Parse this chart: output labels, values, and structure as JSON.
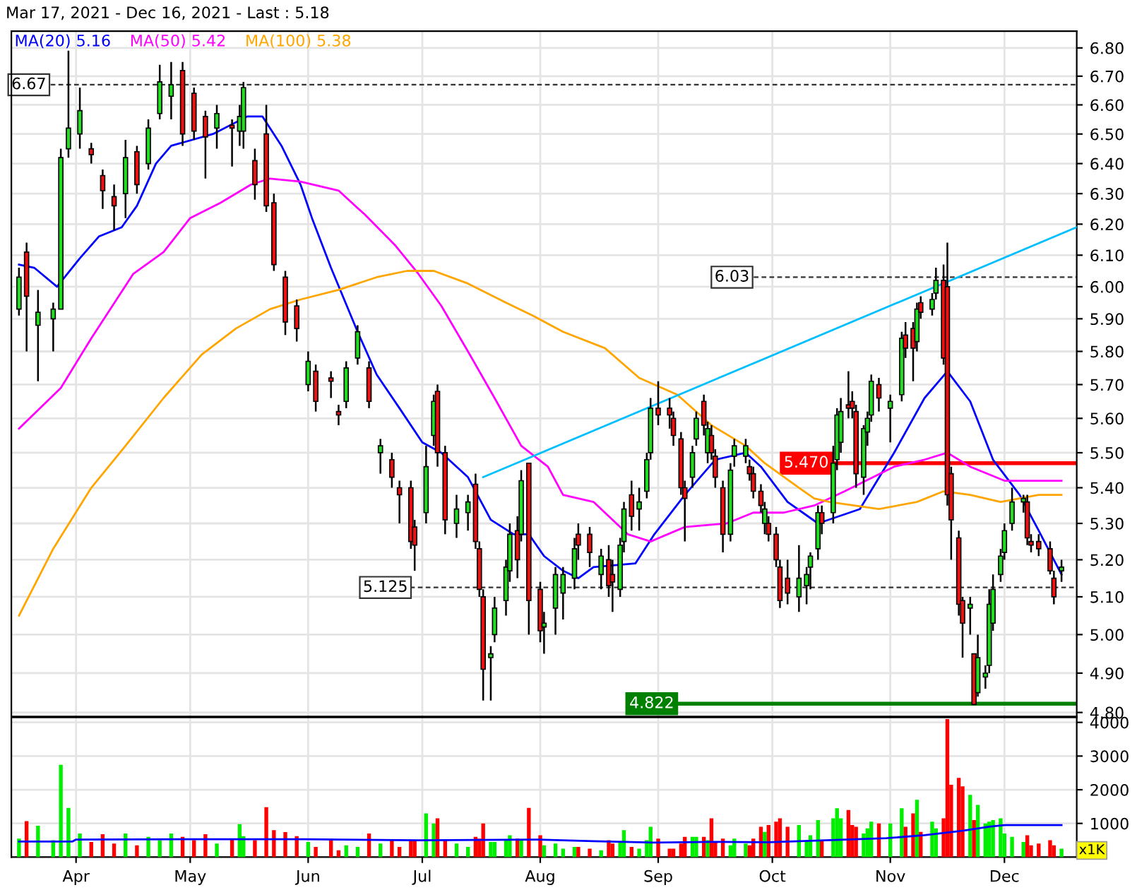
{
  "chart_data": [
    {
      "type": "candlestick",
      "title": "Mar 17, 2021 - Dec 16, 2021 - Last : 5.18",
      "log": "y",
      "grid": true,
      "legend": "top left",
      "tick_labels": "y",
      "x": [
        "2021-03-17",
        "2021-03-19",
        "2021-03-22",
        "2021-03-26",
        "2021-03-28",
        "2021-03-30",
        "2021-04-02",
        "2021-04-05",
        "2021-04-08",
        "2021-04-11",
        "2021-04-14",
        "2021-04-17",
        "2021-04-20",
        "2021-04-23",
        "2021-04-26",
        "2021-04-29",
        "2021-05-02",
        "2021-05-05",
        "2021-05-08",
        "2021-05-12",
        "2021-05-14",
        "2021-05-15",
        "2021-05-18",
        "2021-05-21",
        "2021-05-23",
        "2021-05-26",
        "2021-05-29",
        "2021-06-01",
        "2021-06-03",
        "2021-06-07",
        "2021-06-09",
        "2021-06-11",
        "2021-06-14",
        "2021-06-17",
        "2021-06-20",
        "2021-06-23",
        "2021-06-25",
        "2021-06-28",
        "2021-06-29",
        "2021-07-02",
        "2021-07-04",
        "2021-07-05",
        "2021-07-07",
        "2021-07-10",
        "2021-07-13",
        "2021-07-15",
        "2021-07-16",
        "2021-07-17",
        "2021-07-19",
        "2021-07-20",
        "2021-07-23",
        "2021-07-24",
        "2021-07-26",
        "2021-07-27",
        "2021-07-29",
        "2021-08-01",
        "2021-08-02",
        "2021-08-05",
        "2021-08-07",
        "2021-08-10",
        "2021-08-11",
        "2021-08-14",
        "2021-08-17",
        "2021-08-19",
        "2021-08-20",
        "2021-08-22",
        "2021-08-23",
        "2021-08-25",
        "2021-08-27",
        "2021-08-29",
        "2021-08-30",
        "2021-09-01",
        "2021-09-04",
        "2021-09-05",
        "2021-09-07",
        "2021-09-08",
        "2021-09-10",
        "2021-09-11",
        "2021-09-13",
        "2021-09-14",
        "2021-09-15",
        "2021-09-16",
        "2021-09-18",
        "2021-09-20",
        "2021-09-21",
        "2021-09-24",
        "2021-09-25",
        "2021-09-26",
        "2021-09-28",
        "2021-09-29",
        "2021-09-30",
        "2021-10-02",
        "2021-10-03",
        "2021-10-05",
        "2021-10-08",
        "2021-10-10",
        "2021-10-11",
        "2021-10-13",
        "2021-10-14",
        "2021-10-17",
        "2021-10-18",
        "2021-10-19",
        "2021-10-21",
        "2021-10-22",
        "2021-10-23",
        "2021-10-25",
        "2021-10-26",
        "2021-10-27",
        "2021-10-29",
        "2021-11-01",
        "2021-11-04",
        "2021-11-05",
        "2021-11-07",
        "2021-11-08",
        "2021-11-09",
        "2021-11-12",
        "2021-11-13",
        "2021-11-15",
        "2021-11-16",
        "2021-11-17",
        "2021-11-19",
        "2021-11-20",
        "2021-11-22",
        "2021-11-23",
        "2021-11-24",
        "2021-11-26",
        "2021-11-27",
        "2021-11-28",
        "2021-11-30",
        "2021-12-01",
        "2021-12-03",
        "2021-12-06",
        "2021-12-07",
        "2021-12-08",
        "2021-12-10",
        "2021-12-13",
        "2021-12-14",
        "2021-12-16"
      ],
      "ohlc": [
        [
          5.93,
          6.06,
          5.91,
          6.03
        ],
        [
          6.11,
          6.14,
          5.8,
          5.97
        ],
        [
          5.88,
          5.99,
          5.71,
          5.92
        ],
        [
          5.9,
          5.95,
          5.8,
          5.93
        ],
        [
          5.93,
          6.45,
          5.93,
          6.42
        ],
        [
          6.45,
          6.79,
          6.42,
          6.52
        ],
        [
          6.5,
          6.66,
          6.45,
          6.58
        ],
        [
          6.45,
          6.47,
          6.4,
          6.43
        ],
        [
          6.36,
          6.38,
          6.25,
          6.31
        ],
        [
          6.29,
          6.33,
          6.18,
          6.26
        ],
        [
          6.3,
          6.48,
          6.22,
          6.42
        ],
        [
          6.44,
          6.46,
          6.3,
          6.33
        ],
        [
          6.4,
          6.55,
          6.38,
          6.52
        ],
        [
          6.57,
          6.74,
          6.55,
          6.68
        ],
        [
          6.63,
          6.75,
          6.55,
          6.67
        ],
        [
          6.72,
          6.75,
          6.46,
          6.5
        ],
        [
          6.64,
          6.66,
          6.48,
          6.51
        ],
        [
          6.56,
          6.58,
          6.35,
          6.49
        ],
        [
          6.52,
          6.6,
          6.45,
          6.57
        ],
        [
          6.53,
          6.55,
          6.39,
          6.52
        ],
        [
          6.51,
          6.6,
          6.46,
          6.56
        ],
        [
          6.51,
          6.68,
          6.45,
          6.66
        ],
        [
          6.41,
          6.45,
          6.28,
          6.33
        ],
        [
          6.5,
          6.6,
          6.24,
          6.26
        ],
        [
          6.27,
          6.3,
          6.05,
          6.07
        ],
        [
          6.03,
          6.05,
          5.85,
          5.89
        ],
        [
          5.94,
          5.96,
          5.83,
          5.87
        ],
        [
          5.7,
          5.8,
          5.68,
          5.77
        ],
        [
          5.74,
          5.76,
          5.62,
          5.65
        ],
        [
          5.72,
          5.74,
          5.66,
          5.71
        ],
        [
          5.62,
          5.64,
          5.58,
          5.61
        ],
        [
          5.65,
          5.77,
          5.63,
          5.75
        ],
        [
          5.78,
          5.88,
          5.76,
          5.86
        ],
        [
          5.75,
          5.77,
          5.63,
          5.65
        ],
        [
          5.5,
          5.54,
          5.44,
          5.52
        ],
        [
          5.48,
          5.5,
          5.4,
          5.43
        ],
        [
          5.4,
          5.42,
          5.3,
          5.38
        ],
        [
          5.4,
          5.42,
          5.23,
          5.25
        ],
        [
          5.29,
          5.31,
          5.17,
          5.24
        ],
        [
          5.33,
          5.52,
          5.3,
          5.46
        ],
        [
          5.55,
          5.67,
          5.52,
          5.65
        ],
        [
          5.68,
          5.7,
          5.46,
          5.5
        ],
        [
          5.5,
          5.52,
          5.27,
          5.31
        ],
        [
          5.3,
          5.38,
          5.26,
          5.34
        ],
        [
          5.33,
          5.38,
          5.28,
          5.36
        ],
        [
          5.41,
          5.44,
          5.23,
          5.25
        ],
        [
          5.23,
          5.25,
          5.1,
          5.12
        ],
        [
          5.1,
          5.12,
          4.83,
          4.91
        ],
        [
          4.94,
          4.97,
          4.83,
          4.95
        ],
        [
          5.0,
          5.1,
          4.98,
          5.07
        ],
        [
          5.09,
          5.2,
          5.05,
          5.18
        ],
        [
          5.17,
          5.3,
          5.14,
          5.27
        ],
        [
          5.28,
          5.32,
          5.15,
          5.2
        ],
        [
          5.27,
          5.45,
          5.25,
          5.42
        ],
        [
          5.47,
          5.47,
          5.0,
          5.09
        ],
        [
          5.12,
          5.14,
          4.98,
          5.01
        ],
        [
          5.02,
          5.06,
          4.95,
          5.03
        ],
        [
          5.07,
          5.18,
          5.0,
          5.16
        ],
        [
          5.11,
          5.18,
          5.04,
          5.16
        ],
        [
          5.15,
          5.26,
          5.12,
          5.23
        ],
        [
          5.27,
          5.3,
          5.2,
          5.24
        ],
        [
          5.27,
          5.29,
          5.18,
          5.22
        ],
        [
          5.16,
          5.23,
          5.12,
          5.21
        ],
        [
          5.2,
          5.24,
          5.1,
          5.13
        ],
        [
          5.16,
          5.2,
          5.06,
          5.14
        ],
        [
          5.12,
          5.26,
          5.1,
          5.24
        ],
        [
          5.25,
          5.36,
          5.22,
          5.34
        ],
        [
          5.38,
          5.42,
          5.28,
          5.32
        ],
        [
          5.34,
          5.4,
          5.28,
          5.36
        ],
        [
          5.39,
          5.5,
          5.37,
          5.48
        ],
        [
          5.5,
          5.66,
          5.48,
          5.63
        ],
        [
          5.63,
          5.71,
          5.58,
          5.61
        ],
        [
          5.63,
          5.66,
          5.57,
          5.61
        ],
        [
          5.6,
          5.62,
          5.52,
          5.55
        ],
        [
          5.54,
          5.56,
          5.38,
          5.4
        ],
        [
          5.4,
          5.42,
          5.25,
          5.37
        ],
        [
          5.43,
          5.52,
          5.4,
          5.5
        ],
        [
          5.54,
          5.62,
          5.52,
          5.6
        ],
        [
          5.65,
          5.67,
          5.55,
          5.58
        ],
        [
          5.5,
          5.59,
          5.47,
          5.57
        ],
        [
          5.55,
          5.58,
          5.48,
          5.5
        ],
        [
          5.49,
          5.51,
          5.4,
          5.43
        ],
        [
          5.4,
          5.42,
          5.22,
          5.27
        ],
        [
          5.27,
          5.47,
          5.25,
          5.45
        ],
        [
          5.49,
          5.54,
          5.46,
          5.52
        ],
        [
          5.49,
          5.54,
          5.47,
          5.52
        ],
        [
          5.46,
          5.48,
          5.42,
          5.44
        ],
        [
          5.44,
          5.46,
          5.37,
          5.39
        ],
        [
          5.39,
          5.41,
          5.33,
          5.35
        ],
        [
          5.3,
          5.36,
          5.27,
          5.34
        ],
        [
          5.3,
          5.32,
          5.25,
          5.27
        ],
        [
          5.27,
          5.29,
          5.18,
          5.2
        ],
        [
          5.18,
          5.2,
          5.07,
          5.09
        ],
        [
          5.15,
          5.2,
          5.08,
          5.11
        ],
        [
          5.1,
          5.24,
          5.06,
          5.15
        ],
        [
          5.13,
          5.18,
          5.08,
          5.16
        ],
        [
          5.18,
          5.22,
          5.12,
          5.21
        ],
        [
          5.23,
          5.35,
          5.2,
          5.33
        ],
        [
          5.33,
          5.35,
          5.27,
          5.3
        ],
        [
          5.33,
          5.52,
          5.3,
          5.47
        ],
        [
          5.48,
          5.63,
          5.45,
          5.61
        ],
        [
          5.53,
          5.66,
          5.5,
          5.62
        ],
        [
          5.64,
          5.74,
          5.6,
          5.63
        ],
        [
          5.65,
          5.68,
          5.6,
          5.63
        ],
        [
          5.62,
          5.64,
          5.4,
          5.44
        ],
        [
          5.43,
          5.58,
          5.38,
          5.57
        ],
        [
          5.56,
          5.62,
          5.52,
          5.6
        ],
        [
          5.61,
          5.73,
          5.59,
          5.71
        ],
        [
          5.7,
          5.72,
          5.62,
          5.66
        ],
        [
          5.63,
          5.67,
          5.53,
          5.65
        ],
        [
          5.67,
          5.86,
          5.65,
          5.84
        ],
        [
          5.85,
          5.89,
          5.78,
          5.81
        ],
        [
          5.87,
          5.89,
          5.71,
          5.81
        ],
        [
          5.83,
          5.95,
          5.8,
          5.93
        ],
        [
          5.95,
          5.97,
          5.9,
          5.92
        ],
        [
          5.93,
          5.98,
          5.91,
          5.96
        ],
        [
          5.98,
          6.06,
          5.96,
          6.02
        ],
        [
          6.02,
          6.07,
          5.76,
          5.78
        ],
        [
          6.0,
          6.14,
          5.35,
          5.38
        ],
        [
          5.44,
          5.46,
          5.2,
          5.31
        ],
        [
          5.26,
          5.28,
          5.05,
          5.08
        ],
        [
          5.09,
          5.1,
          4.94,
          5.03
        ],
        [
          5.07,
          5.1,
          5.0,
          5.08
        ],
        [
          4.95,
          4.95,
          4.82,
          4.82
        ],
        [
          4.85,
          5.0,
          4.84,
          4.94
        ],
        [
          4.89,
          4.92,
          4.86,
          4.9
        ],
        [
          4.92,
          5.12,
          4.9,
          5.08
        ],
        [
          5.03,
          5.16,
          5.01,
          5.12
        ],
        [
          5.16,
          5.23,
          5.14,
          5.21
        ],
        [
          5.22,
          5.3,
          5.2,
          5.28
        ],
        [
          5.3,
          5.4,
          5.28,
          5.36
        ],
        [
          5.36,
          5.38,
          5.33,
          5.37
        ],
        [
          5.36,
          5.38,
          5.24,
          5.26
        ],
        [
          5.25,
          5.27,
          5.22,
          5.24
        ],
        [
          5.25,
          5.27,
          5.21,
          5.23
        ],
        [
          5.23,
          5.25,
          5.16,
          5.17
        ],
        [
          5.15,
          5.17,
          5.08,
          5.1
        ],
        [
          5.17,
          5.2,
          5.14,
          5.18
        ]
      ],
      "series": [
        {
          "name": "MA(20) 5.16",
          "type": "line",
          "color": "#0000ff",
          "x": [
            "2021-03-17",
            "2021-03-21",
            "2021-03-27",
            "2021-04-02",
            "2021-04-07",
            "2021-04-13",
            "2021-04-17",
            "2021-04-22",
            "2021-04-26",
            "2021-05-07",
            "2021-05-16",
            "2021-05-20",
            "2021-05-25",
            "2021-05-30",
            "2021-06-02",
            "2021-06-07",
            "2021-06-14",
            "2021-06-19",
            "2021-06-25",
            "2021-07-01",
            "2021-07-06",
            "2021-07-13",
            "2021-07-19",
            "2021-07-25",
            "2021-07-29",
            "2021-08-02",
            "2021-08-07",
            "2021-08-11",
            "2021-08-15",
            "2021-08-26",
            "2021-08-31",
            "2021-09-08",
            "2021-09-16",
            "2021-09-24",
            "2021-09-28",
            "2021-10-05",
            "2021-10-09",
            "2021-10-13",
            "2021-10-24",
            "2021-11-02",
            "2021-11-10",
            "2021-11-16",
            "2021-11-22",
            "2021-11-28",
            "2021-12-05",
            "2021-12-10",
            "2021-12-16"
          ],
          "values": [
            6.07,
            6.06,
            6.0,
            6.09,
            6.16,
            6.19,
            6.26,
            6.4,
            6.46,
            6.5,
            6.56,
            6.56,
            6.46,
            6.33,
            6.22,
            6.06,
            5.86,
            5.73,
            5.63,
            5.53,
            5.5,
            5.43,
            5.31,
            5.27,
            5.27,
            5.21,
            5.17,
            5.15,
            5.18,
            5.19,
            5.27,
            5.38,
            5.48,
            5.5,
            5.46,
            5.36,
            5.33,
            5.3,
            5.34,
            5.5,
            5.66,
            5.74,
            5.65,
            5.48,
            5.38,
            5.28,
            5.16
          ]
        },
        {
          "name": "MA(50) 5.42",
          "type": "line",
          "color": "#ff00ff",
          "x": [
            "2021-03-17",
            "2021-03-28",
            "2021-04-05",
            "2021-04-16",
            "2021-04-24",
            "2021-05-01",
            "2021-05-09",
            "2021-05-17",
            "2021-05-22",
            "2021-05-30",
            "2021-06-09",
            "2021-06-16",
            "2021-06-24",
            "2021-06-30",
            "2021-07-06",
            "2021-07-13",
            "2021-07-20",
            "2021-07-27",
            "2021-08-03",
            "2021-08-07",
            "2021-08-15",
            "2021-08-24",
            "2021-08-30",
            "2021-09-08",
            "2021-09-19",
            "2021-09-26",
            "2021-10-04",
            "2021-10-12",
            "2021-10-20",
            "2021-11-02",
            "2021-11-10",
            "2021-11-16",
            "2021-11-22",
            "2021-12-01",
            "2021-12-10",
            "2021-12-16"
          ],
          "values": [
            5.57,
            5.69,
            5.84,
            6.04,
            6.11,
            6.22,
            6.27,
            6.33,
            6.35,
            6.34,
            6.31,
            6.23,
            6.13,
            6.04,
            5.94,
            5.8,
            5.66,
            5.52,
            5.46,
            5.38,
            5.36,
            5.27,
            5.25,
            5.29,
            5.3,
            5.33,
            5.33,
            5.35,
            5.39,
            5.46,
            5.48,
            5.5,
            5.46,
            5.42,
            5.42,
            5.42
          ]
        },
        {
          "name": "MA(100) 5.38",
          "type": "line",
          "color": "#ffa500",
          "x": [
            "2021-03-17",
            "2021-03-26",
            "2021-04-05",
            "2021-04-14",
            "2021-04-24",
            "2021-05-04",
            "2021-05-13",
            "2021-05-22",
            "2021-05-30",
            "2021-06-09",
            "2021-06-19",
            "2021-06-27",
            "2021-07-04",
            "2021-07-13",
            "2021-07-23",
            "2021-07-30",
            "2021-08-07",
            "2021-08-18",
            "2021-08-27",
            "2021-09-06",
            "2021-09-15",
            "2021-09-24",
            "2021-09-29",
            "2021-10-08",
            "2021-10-12",
            "2021-10-16",
            "2021-10-29",
            "2021-11-08",
            "2021-11-15",
            "2021-11-22",
            "2021-11-30",
            "2021-12-10",
            "2021-12-16"
          ],
          "values": [
            5.05,
            5.23,
            5.4,
            5.52,
            5.66,
            5.79,
            5.87,
            5.93,
            5.96,
            5.99,
            6.03,
            6.05,
            6.05,
            6.01,
            5.95,
            5.91,
            5.86,
            5.81,
            5.72,
            5.67,
            5.58,
            5.52,
            5.47,
            5.4,
            5.37,
            5.36,
            5.34,
            5.36,
            5.39,
            5.38,
            5.36,
            5.38,
            5.38
          ]
        },
        {
          "type": "line",
          "color": "#00bfff",
          "x": [
            "2021-07-17",
            "2021-12-20"
          ],
          "values": [
            5.43,
            6.19
          ]
        }
      ],
      "ref_lines": [
        {
          "axis": "y",
          "value": 6.67,
          "label": "6.67",
          "color": "#333333",
          "line_style": "dashed"
        },
        {
          "axis": "y",
          "value": 6.03,
          "label": "6.03",
          "color": "#333333",
          "line_style": "dashed"
        },
        {
          "axis": "y",
          "value": 5.125,
          "label": "5.125",
          "color": "#333333",
          "line_style": "dashed"
        },
        {
          "axis": "y",
          "value": 5.47,
          "label": "5.470",
          "color": "#ff0000",
          "line_style": "solid"
        },
        {
          "axis": "y",
          "value": 4.822,
          "label": "4.822",
          "color": "#008000",
          "line_style": "solid"
        }
      ],
      "xlim": [
        "2021-03-15",
        "2021-12-20"
      ],
      "xticks": [
        {
          "value": "2021-04-01",
          "label": null
        },
        {
          "value": "2021-05-01",
          "label": null
        },
        {
          "value": "2021-06-01",
          "label": null
        },
        {
          "value": "2021-07-01",
          "label": null
        },
        {
          "value": "2021-08-01",
          "label": null
        },
        {
          "value": "2021-09-01",
          "label": null
        },
        {
          "value": "2021-10-01",
          "label": null
        },
        {
          "value": "2021-11-01",
          "label": null
        },
        {
          "value": "2021-12-01",
          "label": null
        }
      ],
      "ylim": [
        4.79,
        6.86
      ],
      "yticks": [
        {
          "value": 4.8,
          "label": "4.80"
        },
        {
          "value": 4.9,
          "label": "4.90"
        },
        {
          "value": 5.0,
          "label": "5.00"
        },
        {
          "value": 5.1,
          "label": "5.10"
        },
        {
          "value": 5.2,
          "label": "5.20"
        },
        {
          "value": 5.3,
          "label": "5.30"
        },
        {
          "value": 5.4,
          "label": "5.40"
        },
        {
          "value": 5.5,
          "label": "5.50"
        },
        {
          "value": 5.6,
          "label": "5.60"
        },
        {
          "value": 5.7,
          "label": "5.70"
        },
        {
          "value": 5.8,
          "label": "5.80"
        },
        {
          "value": 5.9,
          "label": "5.90"
        },
        {
          "value": 6.0,
          "label": "6.00"
        },
        {
          "value": 6.1,
          "label": "6.10"
        },
        {
          "value": 6.2,
          "label": "6.20"
        },
        {
          "value": 6.3,
          "label": "6.30"
        },
        {
          "value": 6.4,
          "label": "6.40"
        },
        {
          "value": 6.5,
          "label": "6.50"
        },
        {
          "value": 6.6,
          "label": "6.60"
        },
        {
          "value": 6.7,
          "label": "6.70"
        },
        {
          "value": 6.8,
          "label": "6.80"
        }
      ]
    },
    {
      "type": "bar",
      "grid": true,
      "annotations": [
        "x1K"
      ],
      "x": [
        "2021-03-17",
        "2021-03-19",
        "2021-03-22",
        "2021-03-26",
        "2021-03-28",
        "2021-03-30",
        "2021-04-02",
        "2021-04-05",
        "2021-04-08",
        "2021-04-11",
        "2021-04-14",
        "2021-04-17",
        "2021-04-20",
        "2021-04-23",
        "2021-04-26",
        "2021-04-29",
        "2021-05-02",
        "2021-05-05",
        "2021-05-08",
        "2021-05-12",
        "2021-05-14",
        "2021-05-15",
        "2021-05-18",
        "2021-05-21",
        "2021-05-23",
        "2021-05-26",
        "2021-05-29",
        "2021-06-01",
        "2021-06-03",
        "2021-06-07",
        "2021-06-09",
        "2021-06-11",
        "2021-06-14",
        "2021-06-17",
        "2021-06-20",
        "2021-06-23",
        "2021-06-25",
        "2021-06-28",
        "2021-06-29",
        "2021-07-02",
        "2021-07-04",
        "2021-07-05",
        "2021-07-07",
        "2021-07-10",
        "2021-07-13",
        "2021-07-15",
        "2021-07-16",
        "2021-07-17",
        "2021-07-19",
        "2021-07-20",
        "2021-07-23",
        "2021-07-24",
        "2021-07-26",
        "2021-07-27",
        "2021-07-29",
        "2021-08-01",
        "2021-08-02",
        "2021-08-05",
        "2021-08-07",
        "2021-08-10",
        "2021-08-11",
        "2021-08-14",
        "2021-08-17",
        "2021-08-19",
        "2021-08-20",
        "2021-08-22",
        "2021-08-23",
        "2021-08-25",
        "2021-08-27",
        "2021-08-29",
        "2021-08-30",
        "2021-09-01",
        "2021-09-04",
        "2021-09-05",
        "2021-09-07",
        "2021-09-08",
        "2021-09-10",
        "2021-09-11",
        "2021-09-13",
        "2021-09-14",
        "2021-09-15",
        "2021-09-16",
        "2021-09-18",
        "2021-09-20",
        "2021-09-21",
        "2021-09-24",
        "2021-09-25",
        "2021-09-26",
        "2021-09-28",
        "2021-09-29",
        "2021-09-30",
        "2021-10-02",
        "2021-10-03",
        "2021-10-05",
        "2021-10-08",
        "2021-10-10",
        "2021-10-11",
        "2021-10-13",
        "2021-10-14",
        "2021-10-17",
        "2021-10-18",
        "2021-10-19",
        "2021-10-21",
        "2021-10-22",
        "2021-10-23",
        "2021-10-25",
        "2021-10-26",
        "2021-10-27",
        "2021-10-29",
        "2021-11-01",
        "2021-11-04",
        "2021-11-05",
        "2021-11-07",
        "2021-11-08",
        "2021-11-09",
        "2021-11-12",
        "2021-11-13",
        "2021-11-15",
        "2021-11-16",
        "2021-11-17",
        "2021-11-19",
        "2021-11-20",
        "2021-11-22",
        "2021-11-23",
        "2021-11-24",
        "2021-11-26",
        "2021-11-27",
        "2021-11-28",
        "2021-11-30",
        "2021-12-01",
        "2021-12-03",
        "2021-12-06",
        "2021-12-07",
        "2021-12-08",
        "2021-12-10",
        "2021-12-13",
        "2021-12-14",
        "2021-12-16"
      ],
      "values": [
        550,
        1070,
        930,
        500,
        2740,
        1460,
        700,
        450,
        680,
        400,
        700,
        350,
        600,
        500,
        700,
        600,
        500,
        680,
        400,
        550,
        980,
        620,
        500,
        1480,
        800,
        740,
        620,
        450,
        300,
        500,
        200,
        350,
        300,
        700,
        400,
        500,
        300,
        500,
        500,
        1300,
        1000,
        1150,
        500,
        400,
        300,
        600,
        550,
        1000,
        450,
        450,
        500,
        650,
        550,
        500,
        1460,
        650,
        350,
        400,
        250,
        300,
        300,
        250,
        200,
        500,
        400,
        450,
        800,
        300,
        250,
        500,
        900,
        550,
        250,
        250,
        400,
        600,
        600,
        600,
        600,
        500,
        1150,
        450,
        550,
        350,
        550,
        400,
        350,
        550,
        900,
        750,
        950,
        1050,
        1150,
        900,
        950,
        500,
        650,
        1100,
        500,
        1150,
        1450,
        1150,
        1400,
        950,
        900,
        700,
        850,
        1050,
        1000,
        1000,
        1450,
        900,
        1300,
        1700,
        750,
        1050,
        850,
        1150,
        4100,
        2150,
        2350,
        2100,
        1850,
        1100,
        1550,
        1000,
        1050,
        1100,
        1150,
        700,
        600,
        450,
        650,
        350,
        400,
        500,
        350,
        250
      ],
      "colors": [
        "#00ee00",
        "#ff0000",
        "#00ee00",
        "#00ee00",
        "#00ee00",
        "#00ee00",
        "#00ee00",
        "#ff0000",
        "#ff0000",
        "#ff0000",
        "#00ee00",
        "#ff0000",
        "#00ee00",
        "#00ee00",
        "#00ee00",
        "#ff0000",
        "#ff0000",
        "#ff0000",
        "#00ee00",
        "#ff0000",
        "#00ee00",
        "#00ee00",
        "#ff0000",
        "#ff0000",
        "#ff0000",
        "#ff0000",
        "#ff0000",
        "#00ee00",
        "#ff0000",
        "#ff0000",
        "#ff0000",
        "#00ee00",
        "#00ee00",
        "#ff0000",
        "#00ee00",
        "#ff0000",
        "#ff0000",
        "#ff0000",
        "#ff0000",
        "#00ee00",
        "#00ee00",
        "#ff0000",
        "#ff0000",
        "#00ee00",
        "#00ee00",
        "#ff0000",
        "#ff0000",
        "#ff0000",
        "#00ee00",
        "#00ee00",
        "#00ee00",
        "#00ee00",
        "#ff0000",
        "#00ee00",
        "#ff0000",
        "#ff0000",
        "#00ee00",
        "#00ee00",
        "#00ee00",
        "#00ee00",
        "#ff0000",
        "#ff0000",
        "#00ee00",
        "#ff0000",
        "#ff0000",
        "#00ee00",
        "#00ee00",
        "#ff0000",
        "#00ee00",
        "#00ee00",
        "#00ee00",
        "#ff0000",
        "#ff0000",
        "#ff0000",
        "#ff0000",
        "#ff0000",
        "#00ee00",
        "#00ee00",
        "#ff0000",
        "#00ee00",
        "#ff0000",
        "#ff0000",
        "#ff0000",
        "#00ee00",
        "#00ee00",
        "#00ee00",
        "#ff0000",
        "#ff0000",
        "#ff0000",
        "#00ee00",
        "#ff0000",
        "#ff0000",
        "#ff0000",
        "#ff0000",
        "#00ee00",
        "#00ee00",
        "#00ee00",
        "#00ee00",
        "#ff0000",
        "#00ee00",
        "#00ee00",
        "#00ee00",
        "#ff0000",
        "#ff0000",
        "#ff0000",
        "#00ee00",
        "#00ee00",
        "#00ee00",
        "#ff0000",
        "#00ee00",
        "#00ee00",
        "#ff0000",
        "#ff0000",
        "#00ee00",
        "#ff0000",
        "#00ee00",
        "#00ee00",
        "#ff0000",
        "#ff0000",
        "#ff0000",
        "#ff0000",
        "#ff0000",
        "#00ee00",
        "#ff0000",
        "#00ee00",
        "#00ee00",
        "#00ee00",
        "#00ee00",
        "#00ee00",
        "#00ee00",
        "#00ee00",
        "#00ee00",
        "#ff0000",
        "#ff0000",
        "#ff0000",
        "#ff0000",
        "#ff0000",
        "#00ee00"
      ],
      "series": [
        {
          "type": "line",
          "color": "#0000ff",
          "x": [
            "2021-03-17",
            "2021-03-31",
            "2021-04-01",
            "2021-04-30",
            "2021-05-31",
            "2021-06-30",
            "2021-07-31",
            "2021-08-15",
            "2021-08-31",
            "2021-09-15",
            "2021-09-30",
            "2021-10-15",
            "2021-10-31",
            "2021-11-10",
            "2021-11-20",
            "2021-11-27",
            "2021-12-01",
            "2021-12-16"
          ],
          "values": [
            460,
            460,
            520,
            530,
            530,
            500,
            520,
            470,
            430,
            450,
            440,
            500,
            560,
            650,
            780,
            900,
            950,
            950
          ]
        }
      ],
      "xlim": [
        "2021-03-15",
        "2021-12-20"
      ],
      "xticks": [
        {
          "value": "2021-04-01",
          "label": "Apr"
        },
        {
          "value": "2021-05-01",
          "label": "May"
        },
        {
          "value": "2021-06-01",
          "label": "Jun"
        },
        {
          "value": "2021-07-01",
          "label": "Jul"
        },
        {
          "value": "2021-08-01",
          "label": "Aug"
        },
        {
          "value": "2021-09-01",
          "label": "Sep"
        },
        {
          "value": "2021-10-01",
          "label": "Oct"
        },
        {
          "value": "2021-11-01",
          "label": "Nov"
        },
        {
          "value": "2021-12-01",
          "label": "Dec"
        }
      ],
      "ylim": [
        0,
        4150
      ],
      "yticks": [
        1000,
        2000,
        3000,
        4000
      ]
    }
  ]
}
